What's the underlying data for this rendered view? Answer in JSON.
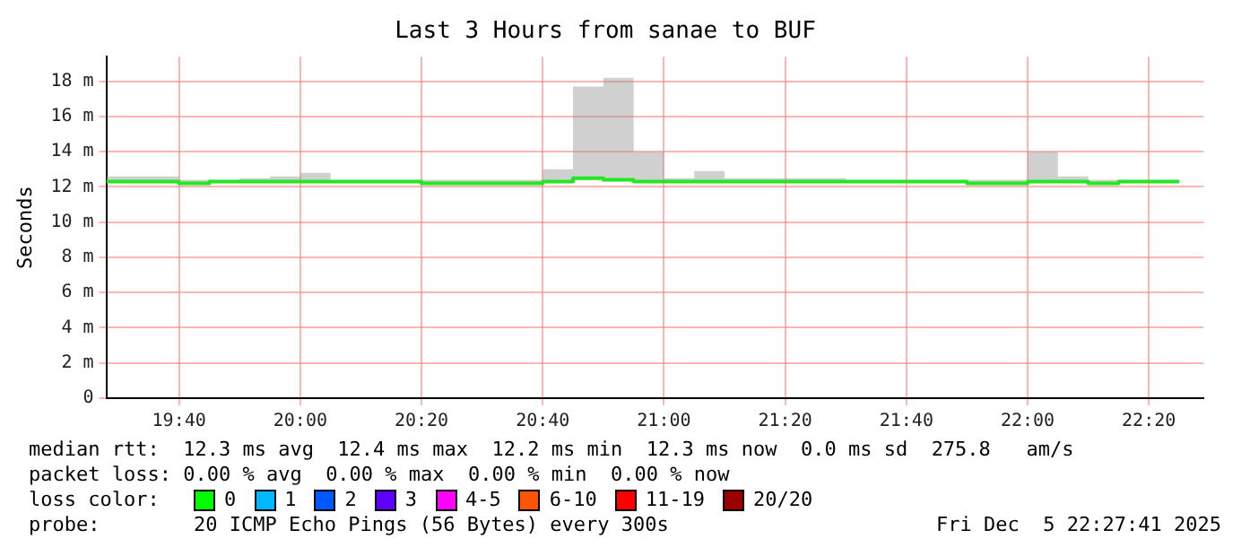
{
  "chart_data": {
    "type": "step",
    "title": "Last 3 Hours from sanae to BUF",
    "ylabel": "Seconds",
    "x": [
      19.4667,
      19.5833,
      19.6667,
      19.75,
      19.8333,
      19.9167,
      20,
      20.0833,
      20.1667,
      20.25,
      20.3333,
      20.4167,
      20.5,
      20.5833,
      20.6667,
      20.75,
      20.8333,
      20.9167,
      21,
      21.0833,
      21.1667,
      21.25,
      21.3333,
      21.4167,
      21.5,
      21.5833,
      21.6667,
      21.75,
      21.8333,
      21.9167,
      22,
      22.0833,
      22.1667,
      22.25,
      22.3333,
      22.4167
    ],
    "series": [
      {
        "type": "step",
        "color": "#22e822",
        "values": [
          12.3,
          12.3,
          12.3,
          12.2,
          12.3,
          12.3,
          12.3,
          12.3,
          12.3,
          12.3,
          12.3,
          12.2,
          12.2,
          12.2,
          12.2,
          12.3,
          12.5,
          12.4,
          12.3,
          12.3,
          12.3,
          12.3,
          12.3,
          12.3,
          12.3,
          12.3,
          12.3,
          12.3,
          12.3,
          12.2,
          12.2,
          12.3,
          12.3,
          12.2,
          12.3,
          12.3
        ],
        "lower": [
          12.3,
          12.3,
          12.3,
          12.2,
          12.3,
          12.3,
          12.3,
          12.3,
          12.3,
          12.3,
          12.3,
          12.2,
          12.2,
          12.2,
          12.2,
          12.3,
          12.5,
          12.4,
          12.3,
          12.3,
          12.3,
          12.3,
          12.3,
          12.3,
          12.3,
          12.3,
          12.3,
          12.3,
          12.3,
          12.2,
          12.2,
          12.3,
          12.3,
          12.2,
          12.3,
          12.3
        ],
        "upper": [
          12.4,
          12.6,
          12.6,
          12.4,
          12.4,
          12.5,
          12.6,
          12.8,
          12.4,
          12.4,
          12.4,
          12.4,
          12.4,
          12.4,
          12.4,
          13.0,
          17.7,
          18.2,
          14.0,
          12.5,
          12.9,
          12.5,
          12.5,
          12.5,
          12.5,
          12.4,
          12.4,
          12.4,
          12.4,
          12.4,
          12.4,
          14.0,
          12.6,
          12.4,
          12.4,
          12.4
        ]
      }
    ],
    "xlim": [
      19.4667,
      22.4833
    ],
    "xticks": [
      {
        "value": 19.6667,
        "label": "19:40"
      },
      {
        "value": 20,
        "label": "20:00"
      },
      {
        "value": 20.3333,
        "label": "20:20"
      },
      {
        "value": 20.6667,
        "label": "20:40"
      },
      {
        "value": 21,
        "label": "21:00"
      },
      {
        "value": 21.3333,
        "label": "21:20"
      },
      {
        "value": 21.6667,
        "label": "21:40"
      },
      {
        "value": 22,
        "label": "22:00"
      },
      {
        "value": 22.3333,
        "label": "22:20"
      }
    ],
    "ylim": [
      0,
      19.4
    ],
    "yticks": [
      {
        "value": 0,
        "label": "0"
      },
      {
        "value": 2,
        "label": "2 m"
      },
      {
        "value": 4,
        "label": "4 m"
      },
      {
        "value": 6,
        "label": "6 m"
      },
      {
        "value": 8,
        "label": "8 m"
      },
      {
        "value": 10,
        "label": "10 m"
      },
      {
        "value": 12,
        "label": "12 m"
      },
      {
        "value": 14,
        "label": "14 m"
      },
      {
        "value": 16,
        "label": "16 m"
      },
      {
        "value": 18,
        "label": "18 m"
      }
    ],
    "grid": true,
    "legend": false,
    "annotations": [
      "median rtt:  12.3 ms avg  12.4 ms max  12.2 ms min  12.3 ms now  0.0 ms sd  275.8   am/s",
      "packet loss: 0.00 % avg  0.00 % max  0.00 % min  0.00 % now",
      "loss color:",
      "0",
      "1",
      "2",
      "3",
      "4-5",
      "6-10",
      "11-19",
      "20/20",
      "probe:",
      "20 ICMP Echo Pings (56 Bytes) every 300s",
      "Fri Dec  5 22:27:41 2025"
    ]
  }
}
